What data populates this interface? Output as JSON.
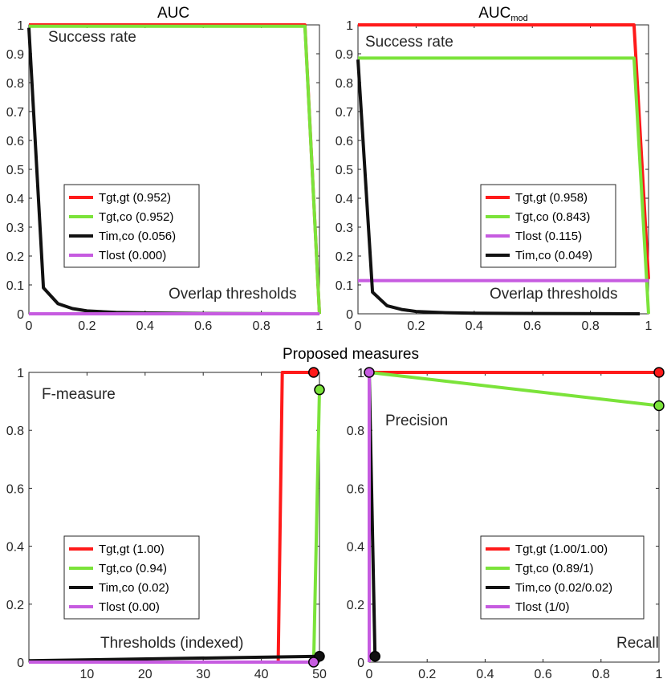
{
  "figure": {
    "subtitle": "Proposed measures"
  },
  "colors": {
    "red": "#ff1a1a",
    "green": "#7be33a",
    "black": "#111111",
    "magenta": "#c65be0",
    "axis": "#262626"
  },
  "chart_data": [
    {
      "id": "auc",
      "type": "line",
      "title": "AUC",
      "title_sub": "",
      "xlim": [
        0,
        1
      ],
      "ylim": [
        0,
        1
      ],
      "xticks": [
        0,
        0.2,
        0.4,
        0.6,
        0.8,
        1
      ],
      "xtick_labels": [
        "0",
        "0.2",
        "0.4",
        "0.6",
        "0.8",
        "1"
      ],
      "yticks": [
        0,
        0.1,
        0.2,
        0.3,
        0.4,
        0.5,
        0.6,
        0.7,
        0.8,
        0.9,
        1
      ],
      "ytick_labels": [
        "0",
        "0.1",
        "0.2",
        "0.3",
        "0.4",
        "0.5",
        "0.6",
        "0.7",
        "0.8",
        "0.9",
        "1"
      ],
      "annotations": {
        "upper": "Success rate",
        "lower": "Overlap thresholds"
      },
      "series": [
        {
          "name": "Tgt,gt (0.952)",
          "color": "red",
          "x": [
            0,
            0.95,
            1
          ],
          "y": [
            1,
            1,
            0
          ]
        },
        {
          "name": "Tgt,co (0.952)",
          "color": "green",
          "x": [
            0,
            0.95,
            1
          ],
          "y": [
            0.995,
            0.995,
            0
          ]
        },
        {
          "name": "Tim,co (0.056)",
          "color": "black",
          "x": [
            0,
            0.05,
            0.1,
            0.15,
            0.2,
            0.3,
            0.4,
            0.6,
            1
          ],
          "y": [
            0.99,
            0.09,
            0.035,
            0.018,
            0.01,
            0.005,
            0.003,
            0.001,
            0
          ]
        },
        {
          "name": "Tlost (0.000)",
          "color": "magenta",
          "x": [
            0,
            1
          ],
          "y": [
            0,
            0
          ]
        }
      ],
      "legend": [
        "Tgt,gt (0.952)",
        "Tgt,co (0.952)",
        "Tim,co (0.056)",
        "Tlost (0.000)"
      ]
    },
    {
      "id": "aucmod",
      "type": "line",
      "title": "AUC",
      "title_sub": "mod",
      "xlim": [
        0,
        1
      ],
      "ylim": [
        0,
        1
      ],
      "xticks": [
        0,
        0.2,
        0.4,
        0.6,
        0.8,
        1
      ],
      "xtick_labels": [
        "0",
        "0.2",
        "0.4",
        "0.6",
        "0.8",
        "1"
      ],
      "yticks": [
        0,
        0.1,
        0.2,
        0.3,
        0.4,
        0.5,
        0.6,
        0.7,
        0.8,
        0.9,
        1
      ],
      "ytick_labels": [
        "0",
        "0.1",
        "0.2",
        "0.3",
        "0.4",
        "0.5",
        "0.6",
        "0.7",
        "0.8",
        "0.9",
        "1"
      ],
      "annotations": {
        "upper": "Success rate",
        "lower": "Overlap thresholds"
      },
      "series": [
        {
          "name": "Tgt,gt (0.958)",
          "color": "red",
          "x": [
            0,
            0.95,
            1
          ],
          "y": [
            1,
            1,
            0.12
          ]
        },
        {
          "name": "Tgt,co (0.843)",
          "color": "green",
          "x": [
            0,
            0.95,
            1
          ],
          "y": [
            0.885,
            0.885,
            0
          ]
        },
        {
          "name": "Tlost (0.115)",
          "color": "magenta",
          "x": [
            0,
            1
          ],
          "y": [
            0.115,
            0.115
          ]
        },
        {
          "name": "Tim,co (0.049)",
          "color": "black",
          "x": [
            0,
            0.05,
            0.1,
            0.15,
            0.2,
            0.3,
            0.4,
            0.6,
            0.97
          ],
          "y": [
            0.88,
            0.075,
            0.028,
            0.015,
            0.008,
            0.004,
            0.002,
            0.001,
            0
          ]
        }
      ],
      "legend": [
        "Tgt,gt (0.958)",
        "Tgt,co (0.843)",
        "Tlost (0.115)",
        "Tim,co (0.049)"
      ]
    },
    {
      "id": "fmeasure",
      "type": "line",
      "title": "",
      "xlim": [
        0,
        50
      ],
      "ylim": [
        0,
        1
      ],
      "xticks": [
        10,
        20,
        30,
        40,
        50
      ],
      "xtick_labels": [
        "10",
        "20",
        "30",
        "40",
        "50"
      ],
      "yticks": [
        0,
        0.2,
        0.4,
        0.6,
        0.8,
        1
      ],
      "ytick_labels": [
        "0",
        "0.2",
        "0.4",
        "0.6",
        "0.8",
        "1"
      ],
      "annotations": {
        "upper": "F-measure",
        "lower": "Thresholds (indexed)"
      },
      "series": [
        {
          "name": "Tgt,gt (1.00)",
          "color": "red",
          "x": [
            0,
            42.9,
            43.6,
            49,
            49.4
          ],
          "y": [
            0,
            0,
            1,
            1,
            1
          ],
          "marker": [
            49,
            1
          ]
        },
        {
          "name": "Tgt,co (0.94)",
          "color": "green",
          "x": [
            0,
            49,
            50
          ],
          "y": [
            0,
            0,
            0.94
          ],
          "marker": [
            50,
            0.94
          ]
        },
        {
          "name": "Tim,co (0.02)",
          "color": "black",
          "x": [
            0,
            50
          ],
          "y": [
            0.005,
            0.02
          ],
          "marker": [
            50,
            0.02
          ]
        },
        {
          "name": "Tlost (0.00)",
          "color": "magenta",
          "x": [
            0,
            49
          ],
          "y": [
            0,
            0
          ],
          "marker": [
            49,
            0
          ]
        }
      ],
      "legend": [
        "Tgt,gt (1.00)",
        "Tgt,co (0.94)",
        "Tim,co (0.02)",
        "Tlost (0.00)"
      ]
    },
    {
      "id": "precrecall",
      "type": "line",
      "title": "",
      "xlim": [
        0,
        1
      ],
      "ylim": [
        0,
        1
      ],
      "xticks": [
        0,
        0.2,
        0.4,
        0.6,
        0.8,
        1
      ],
      "xtick_labels": [
        "0",
        "0.2",
        "0.4",
        "0.6",
        "0.8",
        "1"
      ],
      "yticks": [
        0,
        0.2,
        0.4,
        0.6,
        0.8,
        1
      ],
      "ytick_labels": [
        "0",
        "0.2",
        "0.4",
        "0.6",
        "0.8",
        "1"
      ],
      "annotations": {
        "upper": "Precision",
        "lower": "Recall"
      },
      "series": [
        {
          "name": "Tgt,gt (1.00/1.00)",
          "color": "red",
          "x": [
            0,
            1
          ],
          "y": [
            1,
            1
          ],
          "marker": [
            1,
            1
          ]
        },
        {
          "name": "Tgt,co (0.89/1)",
          "color": "green",
          "x": [
            0,
            1
          ],
          "y": [
            1,
            0.885
          ],
          "marker": [
            1,
            0.885
          ]
        },
        {
          "name": "Tim,co (0.02/0.02)",
          "color": "black",
          "x": [
            0,
            0.02
          ],
          "y": [
            1,
            0.02
          ],
          "marker": [
            0.02,
            0.02
          ]
        },
        {
          "name": "Tlost (1/0)",
          "color": "magenta",
          "x": [
            0,
            0
          ],
          "y": [
            1,
            0
          ],
          "marker": [
            0,
            1
          ]
        }
      ],
      "legend": [
        "Tgt,gt (1.00/1.00)",
        "Tgt,co (0.89/1)",
        "Tim,co (0.02/0.02)",
        "Tlost (1/0)"
      ]
    }
  ]
}
